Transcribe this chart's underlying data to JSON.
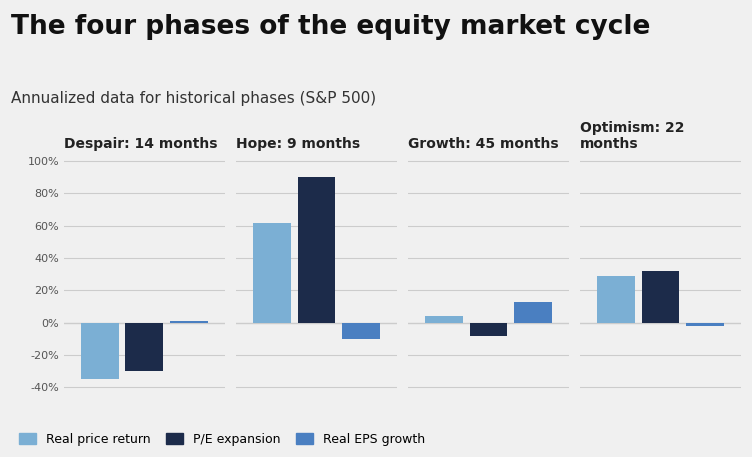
{
  "title": "The four phases of the equity market cycle",
  "subtitle": "Annualized data for historical phases (S&P 500)",
  "phases": [
    "Despair: 14 months",
    "Hope: 9 months",
    "Growth: 45 months",
    "Optimism: 22\nmonths"
  ],
  "series": {
    "Real price return": [
      -35,
      62,
      4,
      29
    ],
    "P/E expansion": [
      -30,
      90,
      -8,
      32
    ],
    "Real EPS growth": [
      1,
      -10,
      13,
      -2
    ]
  },
  "colors": {
    "Real price return": "#7BAFD4",
    "P/E expansion": "#1C2B4A",
    "Real EPS growth": "#4A7FC1"
  },
  "ylim": [
    -45,
    105
  ],
  "yticks": [
    -40,
    -20,
    0,
    20,
    40,
    60,
    80,
    100
  ],
  "ytick_labels": [
    "-40%",
    "-20%",
    "0%",
    "20%",
    "40%",
    "60%",
    "80%",
    "100%"
  ],
  "background_color": "#f0f0f0",
  "title_fontsize": 19,
  "subtitle_fontsize": 11,
  "phase_fontsize": 10
}
